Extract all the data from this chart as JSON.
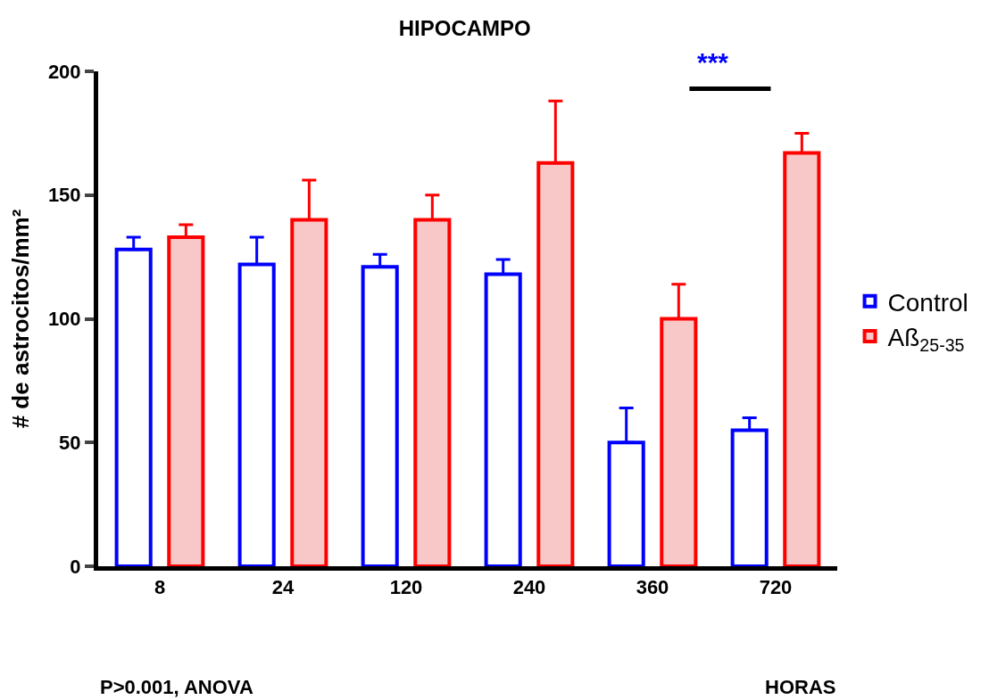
{
  "chart_data": {
    "type": "bar",
    "title": "HIPOCAMPO",
    "xlabel": "HORAS",
    "ylabel": "# de astrocitos/mm²",
    "categories": [
      "8",
      "24",
      "120",
      "240",
      "360",
      "720"
    ],
    "series": [
      {
        "name": "Control",
        "color": "#0000ff",
        "values": [
          128,
          122,
          121,
          118,
          50,
          55
        ],
        "errors": [
          [
            128,
            133
          ],
          [
            122,
            133
          ],
          [
            121,
            126
          ],
          [
            118,
            124
          ],
          [
            50,
            64
          ],
          [
            55,
            60
          ]
        ]
      },
      {
        "name": "Aß$_{25-35}$",
        "color": "#ff0000",
        "values": [
          133,
          140,
          140,
          163,
          100,
          167
        ],
        "errors": [
          [
            133,
            138
          ],
          [
            140,
            156
          ],
          [
            140,
            150
          ],
          [
            163,
            188
          ],
          [
            100,
            114
          ],
          [
            167,
            175
          ]
        ]
      }
    ],
    "ylim": [
      0,
      200
    ],
    "yticks": [
      0,
      50,
      100,
      150,
      200
    ],
    "legend": "right",
    "annotations": [
      "***",
      "P>0.001, ANOVA"
    ]
  }
}
